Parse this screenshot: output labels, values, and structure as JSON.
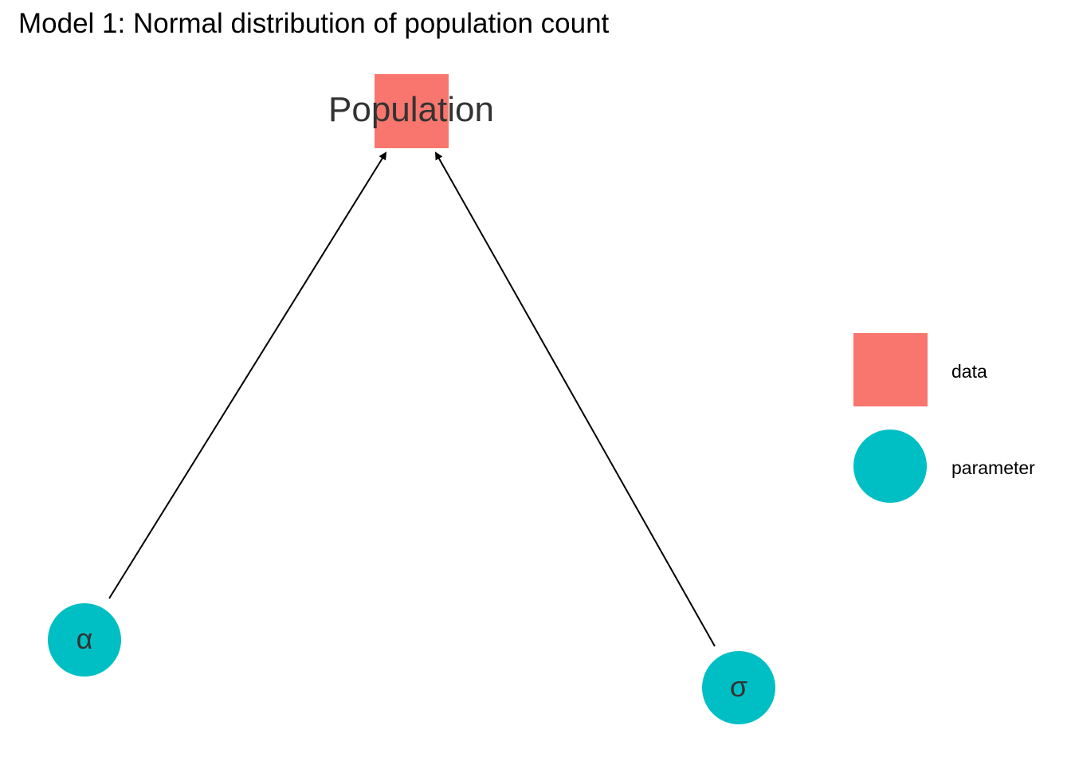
{
  "title": "Model 1: Normal distribution of population count",
  "colors": {
    "data": "#F8766D",
    "parameter": "#00BFC4",
    "edge": "#000000",
    "label": "#333333"
  },
  "nodes": [
    {
      "id": "population",
      "label": "Population",
      "type": "data",
      "shape": "square"
    },
    {
      "id": "alpha",
      "label": "α",
      "type": "parameter",
      "shape": "circle"
    },
    {
      "id": "sigma",
      "label": "σ",
      "type": "parameter",
      "shape": "circle"
    }
  ],
  "edges": [
    {
      "from": "alpha",
      "to": "population"
    },
    {
      "from": "sigma",
      "to": "population"
    }
  ],
  "legend": {
    "items": [
      {
        "label": "data",
        "shape": "square",
        "color_key": "data"
      },
      {
        "label": "parameter",
        "shape": "circle",
        "color_key": "parameter"
      }
    ]
  }
}
